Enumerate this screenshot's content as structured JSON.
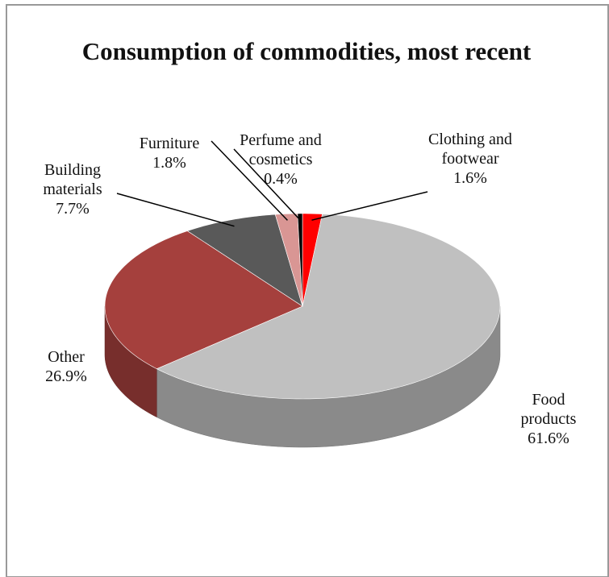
{
  "chart_data": {
    "type": "pie",
    "title": "Consumption of commodities, most recent",
    "categories": [
      "Clothing and footwear",
      "Food products",
      "Other",
      "Building materials",
      "Furniture",
      "Perfume and cosmetics"
    ],
    "values": [
      1.6,
      61.6,
      26.9,
      7.7,
      1.8,
      0.4
    ],
    "value_labels": [
      "1.6%",
      "61.6%",
      "26.9%",
      "7.7%",
      "1.8%",
      "0.4%"
    ],
    "colors": [
      "#ff0000",
      "#c0c0c0",
      "#a5403d",
      "#595959",
      "#d99694",
      "#000000"
    ]
  }
}
